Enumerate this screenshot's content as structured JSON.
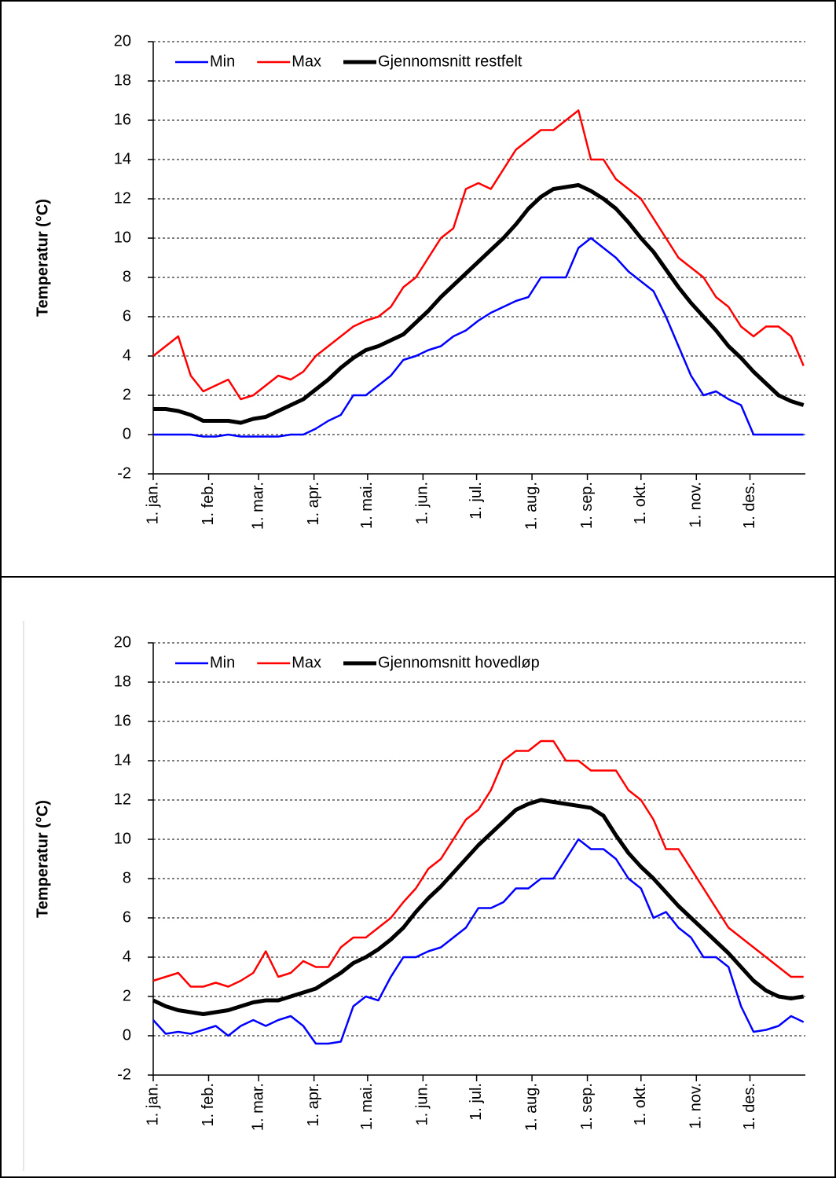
{
  "chart_data": [
    {
      "type": "line",
      "y_label": "Temperatur (°C)",
      "grid": true,
      "legend": "upper left",
      "x": [
        1,
        8,
        15,
        22,
        29,
        36,
        43,
        50,
        57,
        64,
        71,
        78,
        85,
        92,
        99,
        106,
        113,
        120,
        127,
        134,
        141,
        148,
        155,
        162,
        169,
        176,
        183,
        190,
        197,
        204,
        211,
        218,
        225,
        232,
        239,
        246,
        253,
        260,
        267,
        274,
        281,
        288,
        295,
        302,
        309,
        316,
        323,
        330,
        337,
        344,
        351,
        358,
        365
      ],
      "xlim": [
        1,
        366
      ],
      "xticks": [
        {
          "value": 1,
          "label": "1. jan."
        },
        {
          "value": 32,
          "label": "1. feb."
        },
        {
          "value": 60,
          "label": "1. mar."
        },
        {
          "value": 91,
          "label": "1. apr."
        },
        {
          "value": 121,
          "label": "1. mai."
        },
        {
          "value": 152,
          "label": "1. jun."
        },
        {
          "value": 182,
          "label": "1. jul."
        },
        {
          "value": 213,
          "label": "1. aug."
        },
        {
          "value": 244,
          "label": "1. sep."
        },
        {
          "value": 274,
          "label": "1. okt."
        },
        {
          "value": 305,
          "label": "1. nov."
        },
        {
          "value": 335,
          "label": "1. des."
        }
      ],
      "ylim": [
        -2,
        20
      ],
      "yticks": [
        -2,
        0,
        2,
        4,
        6,
        8,
        10,
        12,
        14,
        16,
        18,
        20
      ],
      "series": [
        {
          "name": "Min",
          "color": "#0000ff",
          "width": 2.5,
          "values": [
            0,
            0,
            0,
            0,
            -0.1,
            -0.1,
            0,
            -0.1,
            -0.1,
            -0.1,
            -0.1,
            0,
            0,
            0.3,
            0.7,
            1.0,
            2.0,
            2.0,
            2.5,
            3.0,
            3.8,
            4.0,
            4.3,
            4.5,
            5.0,
            5.3,
            5.8,
            6.2,
            6.5,
            6.8,
            7.0,
            8.0,
            8.0,
            8.0,
            9.5,
            10.0,
            9.5,
            9.0,
            8.3,
            7.8,
            7.3,
            6.0,
            4.5,
            3.0,
            2.0,
            2.2,
            1.8,
            1.5,
            0,
            0,
            0,
            0,
            0
          ]
        },
        {
          "name": "Max",
          "color": "#ff0000",
          "width": 2.5,
          "values": [
            4,
            4.5,
            5,
            3,
            2.2,
            2.5,
            2.8,
            1.8,
            2,
            2.5,
            3,
            2.8,
            3.2,
            4,
            4.5,
            5,
            5.5,
            5.8,
            6,
            6.5,
            7.5,
            8,
            9,
            10,
            10.5,
            12.5,
            12.8,
            12.5,
            13.5,
            14.5,
            15,
            15.5,
            15.5,
            16,
            16.5,
            14,
            14,
            13,
            12.5,
            12,
            11,
            10,
            9,
            8.5,
            8,
            7,
            6.5,
            5.5,
            5,
            5.5,
            5.5,
            5,
            3.5
          ]
        },
        {
          "name": "Gjennomsnitt restfelt",
          "color": "#000000",
          "width": 5,
          "values": [
            1.3,
            1.3,
            1.2,
            1.0,
            0.7,
            0.7,
            0.7,
            0.6,
            0.8,
            0.9,
            1.2,
            1.5,
            1.8,
            2.3,
            2.8,
            3.4,
            3.9,
            4.3,
            4.5,
            4.8,
            5.1,
            5.7,
            6.3,
            7.0,
            7.6,
            8.2,
            8.8,
            9.4,
            10.0,
            10.7,
            11.5,
            12.1,
            12.5,
            12.6,
            12.7,
            12.4,
            12.0,
            11.5,
            10.8,
            10.0,
            9.3,
            8.4,
            7.5,
            6.7,
            6.0,
            5.3,
            4.5,
            3.9,
            3.2,
            2.6,
            2.0,
            1.7,
            1.5
          ]
        }
      ]
    },
    {
      "type": "line",
      "y_label": "Temperatur (°C)",
      "grid": true,
      "legend": "upper left",
      "x": [
        1,
        8,
        15,
        22,
        29,
        36,
        43,
        50,
        57,
        64,
        71,
        78,
        85,
        92,
        99,
        106,
        113,
        120,
        127,
        134,
        141,
        148,
        155,
        162,
        169,
        176,
        183,
        190,
        197,
        204,
        211,
        218,
        225,
        232,
        239,
        246,
        253,
        260,
        267,
        274,
        281,
        288,
        295,
        302,
        309,
        316,
        323,
        330,
        337,
        344,
        351,
        358,
        365
      ],
      "xlim": [
        1,
        366
      ],
      "xticks": [
        {
          "value": 1,
          "label": "1. jan."
        },
        {
          "value": 32,
          "label": "1. feb."
        },
        {
          "value": 60,
          "label": "1. mar."
        },
        {
          "value": 91,
          "label": "1. apr."
        },
        {
          "value": 121,
          "label": "1. mai."
        },
        {
          "value": 152,
          "label": "1. jun."
        },
        {
          "value": 182,
          "label": "1. jul."
        },
        {
          "value": 213,
          "label": "1. aug."
        },
        {
          "value": 244,
          "label": "1. sep."
        },
        {
          "value": 274,
          "label": "1. okt."
        },
        {
          "value": 305,
          "label": "1. nov."
        },
        {
          "value": 335,
          "label": "1. des."
        }
      ],
      "ylim": [
        -2,
        20
      ],
      "yticks": [
        -2,
        0,
        2,
        4,
        6,
        8,
        10,
        12,
        14,
        16,
        18,
        20
      ],
      "series": [
        {
          "name": "Min",
          "color": "#0000ff",
          "width": 2.5,
          "values": [
            0.8,
            0.1,
            0.2,
            0.1,
            0.3,
            0.5,
            0,
            0.5,
            0.8,
            0.5,
            0.8,
            1.0,
            0.5,
            -0.4,
            -0.4,
            -0.3,
            1.5,
            2.0,
            1.8,
            3.0,
            4.0,
            4.0,
            4.3,
            4.5,
            5.0,
            5.5,
            6.5,
            6.5,
            6.8,
            7.5,
            7.5,
            8.0,
            8.0,
            9.0,
            10.0,
            9.5,
            9.5,
            9.0,
            8.0,
            7.5,
            6.0,
            6.3,
            5.5,
            5.0,
            4.0,
            4.0,
            3.5,
            1.5,
            0.2,
            0.3,
            0.5,
            1.0,
            0.7
          ]
        },
        {
          "name": "Max",
          "color": "#ff0000",
          "width": 2.5,
          "values": [
            2.8,
            3.0,
            3.2,
            2.5,
            2.5,
            2.7,
            2.5,
            2.8,
            3.2,
            4.3,
            3.0,
            3.2,
            3.8,
            3.5,
            3.5,
            4.5,
            5.0,
            5.0,
            5.5,
            6.0,
            6.8,
            7.5,
            8.5,
            9.0,
            10.0,
            11.0,
            11.5,
            12.5,
            14.0,
            14.5,
            14.5,
            15.0,
            15.0,
            14.0,
            14.0,
            13.5,
            13.5,
            13.5,
            12.5,
            12.0,
            11.0,
            9.5,
            9.5,
            8.5,
            7.5,
            6.5,
            5.5,
            5.0,
            4.5,
            4.0,
            3.5,
            3.0,
            3.0
          ]
        },
        {
          "name": "Gjennomsnitt hovedløp",
          "color": "#000000",
          "width": 5,
          "values": [
            1.8,
            1.5,
            1.3,
            1.2,
            1.1,
            1.2,
            1.3,
            1.5,
            1.7,
            1.8,
            1.8,
            2.0,
            2.2,
            2.4,
            2.8,
            3.2,
            3.7,
            4.0,
            4.4,
            4.9,
            5.5,
            6.3,
            7.0,
            7.6,
            8.3,
            9.0,
            9.7,
            10.3,
            10.9,
            11.5,
            11.8,
            12.0,
            11.9,
            11.8,
            11.7,
            11.6,
            11.2,
            10.2,
            9.3,
            8.6,
            8.0,
            7.3,
            6.6,
            6.0,
            5.4,
            4.8,
            4.2,
            3.5,
            2.8,
            2.3,
            2.0,
            1.9,
            2.0
          ]
        }
      ]
    }
  ]
}
